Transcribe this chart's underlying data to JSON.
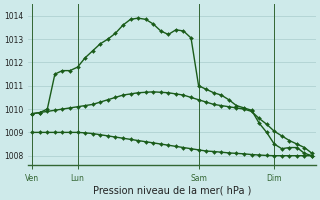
{
  "background_color": "#ceeaea",
  "grid_color": "#aacccc",
  "line_color": "#1a5c1a",
  "marker_color": "#1a5c1a",
  "xlabel": "Pression niveau de la mer( hPa )",
  "ylim": [
    1007.6,
    1014.5
  ],
  "yticks": [
    1008,
    1009,
    1010,
    1011,
    1012,
    1013,
    1014
  ],
  "xtick_labels": [
    "Ven",
    "Lun",
    "Sam",
    "Dim"
  ],
  "xtick_positions": [
    0,
    6,
    22,
    32
  ],
  "vline_positions": [
    0,
    6,
    22,
    32
  ],
  "series1_x": [
    0,
    1,
    2,
    3,
    4,
    5,
    6,
    7,
    8,
    9,
    10,
    11,
    12,
    13,
    14,
    15,
    16,
    17,
    18,
    19,
    20,
    21,
    22,
    23,
    24,
    25,
    26,
    27,
    28,
    29,
    30,
    31,
    32,
    33,
    34,
    35,
    36,
    37
  ],
  "series1": [
    1009.8,
    1009.85,
    1010.0,
    1011.5,
    1011.65,
    1011.65,
    1011.8,
    1012.2,
    1012.5,
    1012.8,
    1013.0,
    1013.25,
    1013.6,
    1013.85,
    1013.9,
    1013.85,
    1013.65,
    1013.35,
    1013.2,
    1013.4,
    1013.35,
    1013.05,
    1011.0,
    1010.85,
    1010.7,
    1010.6,
    1010.4,
    1010.15,
    1010.05,
    1009.95,
    1009.4,
    1009.0,
    1008.5,
    1008.3,
    1008.35,
    1008.35,
    1008.1,
    1008.0
  ],
  "series2_x": [
    0,
    1,
    2,
    3,
    4,
    5,
    6,
    7,
    8,
    9,
    10,
    11,
    12,
    13,
    14,
    15,
    16,
    17,
    18,
    19,
    20,
    21,
    22,
    23,
    24,
    25,
    26,
    27,
    28,
    29,
    30,
    31,
    32,
    33,
    34,
    35,
    36,
    37
  ],
  "series2": [
    1009.8,
    1009.85,
    1009.9,
    1009.95,
    1010.0,
    1010.05,
    1010.1,
    1010.15,
    1010.2,
    1010.3,
    1010.4,
    1010.5,
    1010.6,
    1010.65,
    1010.7,
    1010.72,
    1010.74,
    1010.72,
    1010.7,
    1010.65,
    1010.6,
    1010.5,
    1010.4,
    1010.3,
    1010.2,
    1010.15,
    1010.1,
    1010.05,
    1010.0,
    1009.9,
    1009.6,
    1009.35,
    1009.05,
    1008.85,
    1008.65,
    1008.5,
    1008.35,
    1008.1
  ],
  "series3_x": [
    0,
    1,
    2,
    3,
    4,
    5,
    6,
    7,
    8,
    9,
    10,
    11,
    12,
    13,
    14,
    15,
    16,
    17,
    18,
    19,
    20,
    21,
    22,
    23,
    24,
    25,
    26,
    27,
    28,
    29,
    30,
    31,
    32,
    33,
    34,
    35,
    36,
    37
  ],
  "series3": [
    1009.0,
    1009.0,
    1009.0,
    1009.0,
    1009.0,
    1009.0,
    1009.0,
    1008.98,
    1008.95,
    1008.9,
    1008.85,
    1008.8,
    1008.75,
    1008.7,
    1008.65,
    1008.6,
    1008.55,
    1008.5,
    1008.45,
    1008.4,
    1008.35,
    1008.3,
    1008.25,
    1008.2,
    1008.18,
    1008.15,
    1008.12,
    1008.1,
    1008.08,
    1008.05,
    1008.03,
    1008.01,
    1008.0,
    1008.0,
    1008.0,
    1008.0,
    1008.0,
    1008.0
  ],
  "n_points": 38,
  "ylabel_fontsize": 5.5,
  "xlabel_fontsize": 7.0,
  "tick_fontsize": 5.5
}
